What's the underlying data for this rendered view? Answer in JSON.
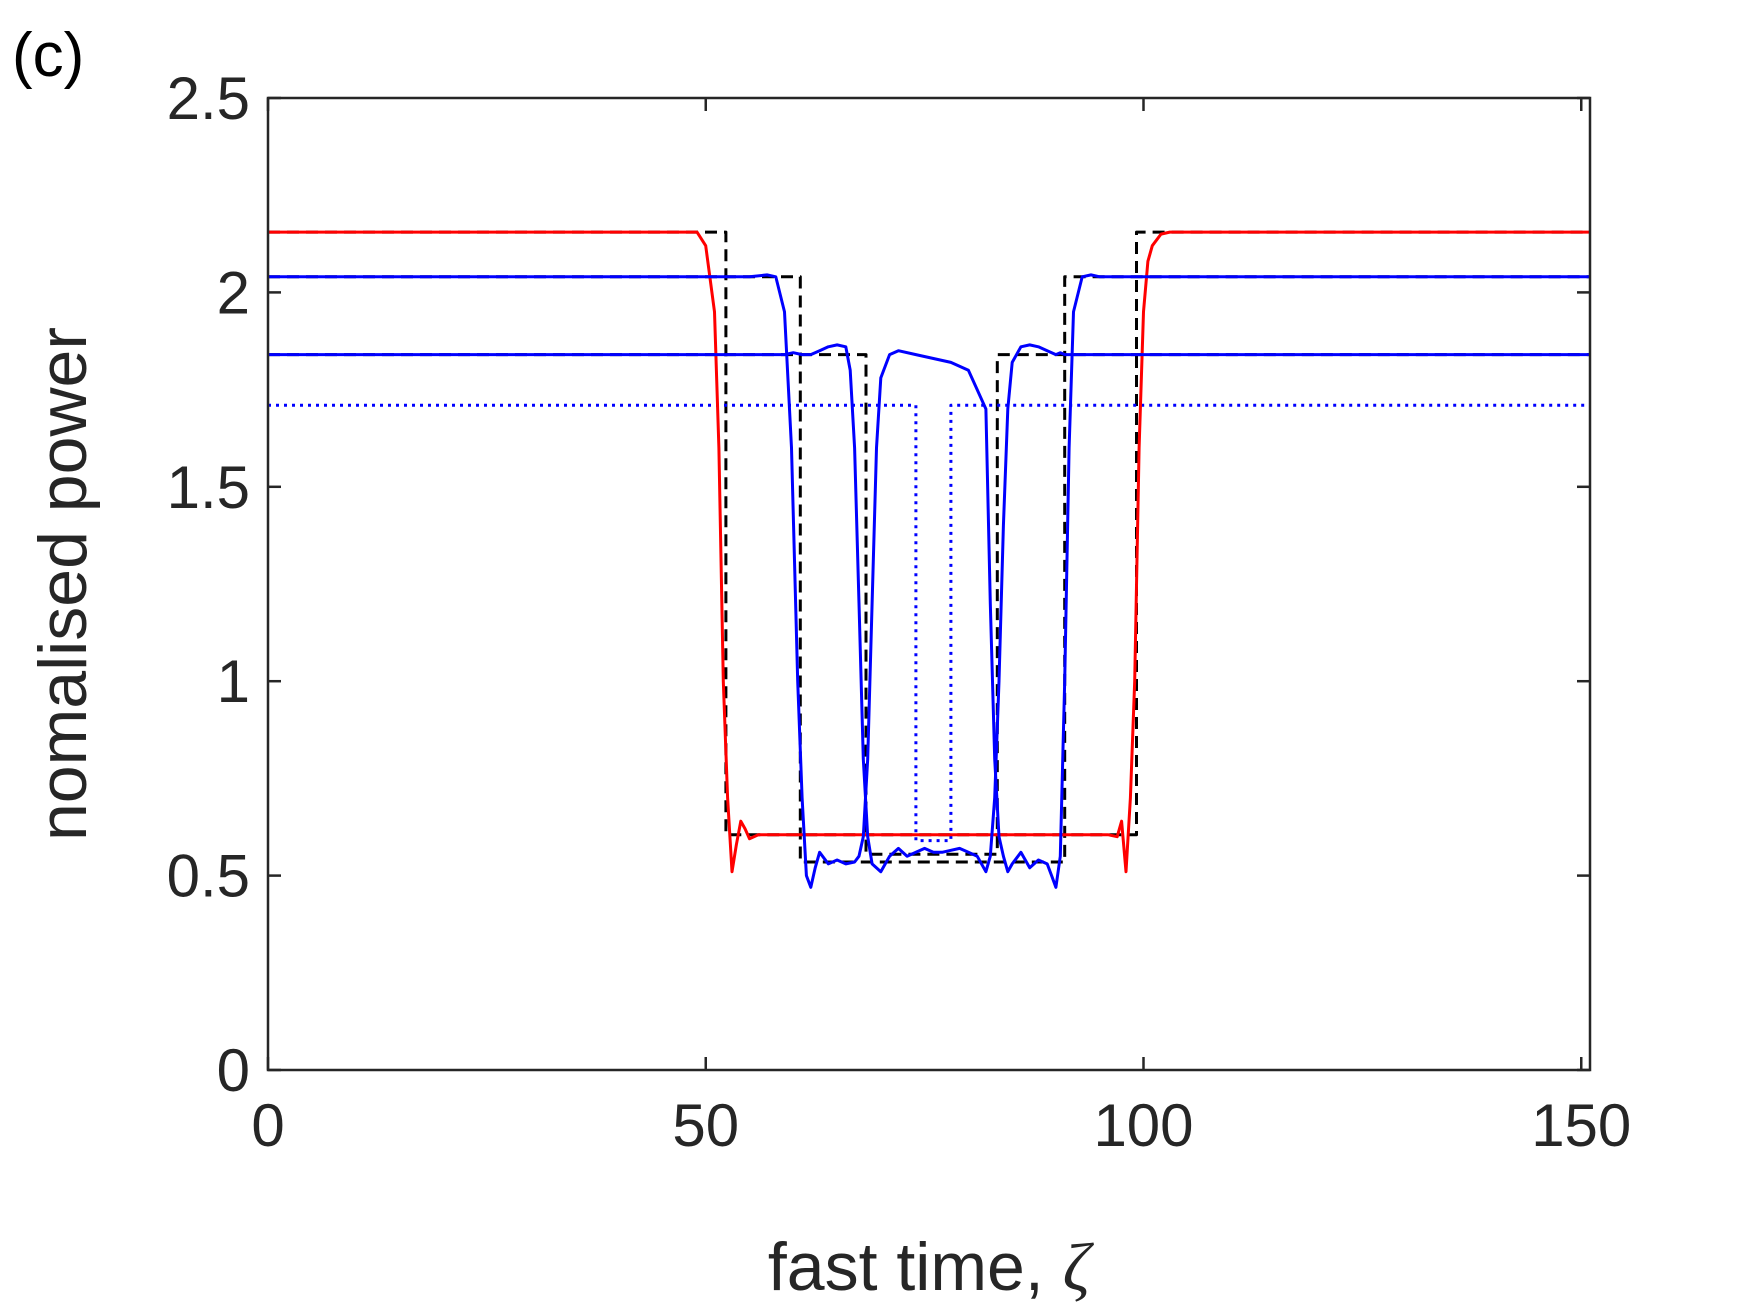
{
  "chart_data": {
    "type": "line",
    "panel_label": "(c)",
    "xlabel": "fast time, ",
    "xlabel_symbol": "ζ",
    "ylabel": "nomalised power",
    "xlim": [
      0,
      151
    ],
    "ylim": [
      0,
      2.5
    ],
    "xticks": [
      0,
      50,
      100,
      150
    ],
    "yticks": [
      0,
      0.5,
      1,
      1.5,
      2,
      2.5
    ],
    "xtick_labels": [
      "0",
      "50",
      "100",
      "150"
    ],
    "ytick_labels": [
      "0",
      "0.5",
      "1",
      "1.5",
      "2",
      "2.5"
    ],
    "grid": false,
    "series": [
      {
        "color": "#000000",
        "style": "dashed",
        "width": 3,
        "x": [
          0,
          52.3,
          52.3,
          99.2,
          99.2,
          151
        ],
        "y": [
          2.155,
          2.155,
          0.605,
          0.605,
          2.155,
          2.155
        ]
      },
      {
        "color": "#000000",
        "style": "dashed",
        "width": 3,
        "x": [
          0,
          60.8,
          60.8,
          91,
          91,
          151
        ],
        "y": [
          2.04,
          2.04,
          0.535,
          0.535,
          2.04,
          2.04
        ]
      },
      {
        "color": "#000000",
        "style": "dashed",
        "width": 3,
        "x": [
          0,
          68.3,
          68.3,
          83.3,
          83.3,
          151
        ],
        "y": [
          1.84,
          1.84,
          0.555,
          0.555,
          1.84,
          1.84
        ]
      },
      {
        "color": "#0000ff",
        "style": "dotted",
        "width": 3,
        "x": [
          0,
          74,
          74,
          78,
          78,
          151
        ],
        "y": [
          1.71,
          1.71,
          0.59,
          0.59,
          1.71,
          1.71
        ]
      },
      {
        "color": "#ff0000",
        "style": "solid",
        "width": 3,
        "x": [
          0,
          49,
          50,
          51,
          51.5,
          52,
          52.5,
          53,
          53.5,
          54,
          54.5,
          55,
          55.5,
          56,
          57,
          58,
          96,
          97,
          97.5,
          98,
          98.5,
          99,
          99.5,
          100,
          100.5,
          101,
          102,
          103,
          151
        ],
        "y": [
          2.155,
          2.155,
          2.12,
          1.95,
          1.6,
          1.0,
          0.7,
          0.51,
          0.58,
          0.64,
          0.62,
          0.595,
          0.6,
          0.605,
          0.605,
          0.605,
          0.605,
          0.6,
          0.64,
          0.51,
          0.7,
          1.0,
          1.6,
          1.95,
          2.08,
          2.12,
          2.15,
          2.155,
          2.155
        ]
      },
      {
        "color": "#0000ff",
        "style": "solid",
        "width": 3,
        "x": [
          0,
          53,
          55,
          57,
          58,
          59,
          59.8,
          60.5,
          61,
          61.5,
          62,
          62.5,
          63,
          64,
          65,
          66,
          67,
          67.5,
          68,
          68.5,
          69,
          69.5,
          70,
          71,
          72,
          74,
          76,
          78,
          80,
          82,
          82.5,
          83,
          83.5,
          84,
          84.5,
          85,
          86,
          87,
          88,
          89,
          89.5,
          90,
          90.5,
          91,
          91.5,
          92,
          93,
          94,
          95,
          97,
          100,
          151
        ],
        "y": [
          2.04,
          2.04,
          2.04,
          2.045,
          2.04,
          1.95,
          1.6,
          1.0,
          0.7,
          0.5,
          0.47,
          0.52,
          0.56,
          0.53,
          0.54,
          0.53,
          0.535,
          0.55,
          0.6,
          0.8,
          1.2,
          1.6,
          1.78,
          1.84,
          1.85,
          1.84,
          1.83,
          1.82,
          1.8,
          1.7,
          1.2,
          0.8,
          0.6,
          0.55,
          0.51,
          0.53,
          0.56,
          0.52,
          0.54,
          0.53,
          0.5,
          0.47,
          0.55,
          1.0,
          1.6,
          1.95,
          2.04,
          2.045,
          2.04,
          2.04,
          2.04,
          2.04
        ]
      },
      {
        "color": "#0000ff",
        "style": "solid",
        "width": 3,
        "x": [
          0,
          59,
          60,
          61,
          62,
          63,
          64,
          65,
          66,
          66.5,
          67,
          67.5,
          68,
          68.5,
          69,
          70,
          71,
          72,
          73,
          74,
          75,
          76,
          77,
          78,
          79,
          80,
          81,
          82,
          82.5,
          83,
          83.5,
          84,
          84.5,
          85,
          86,
          87,
          88,
          89,
          90,
          90.5,
          91,
          92,
          151
        ],
        "y": [
          1.84,
          1.84,
          1.845,
          1.84,
          1.84,
          1.85,
          1.86,
          1.865,
          1.86,
          1.8,
          1.6,
          1.2,
          0.8,
          0.6,
          0.53,
          0.51,
          0.55,
          0.57,
          0.55,
          0.56,
          0.57,
          0.56,
          0.56,
          0.565,
          0.57,
          0.56,
          0.55,
          0.51,
          0.55,
          0.7,
          1.0,
          1.4,
          1.7,
          1.82,
          1.86,
          1.865,
          1.86,
          1.85,
          1.84,
          1.845,
          1.84,
          1.84,
          1.84
        ]
      }
    ]
  }
}
